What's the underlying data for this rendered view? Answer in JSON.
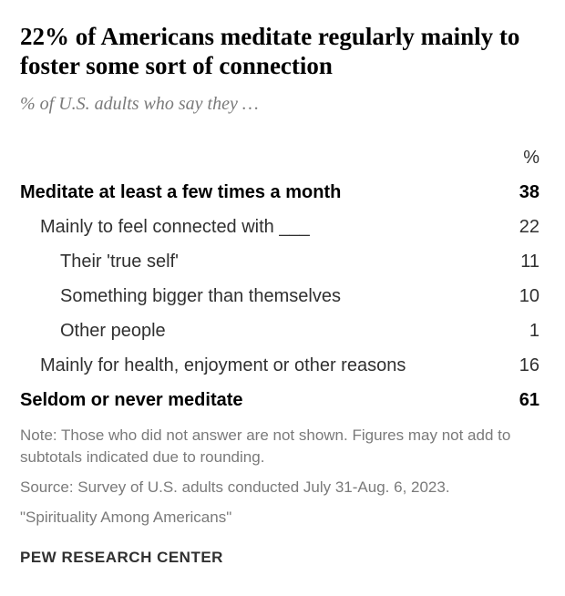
{
  "title": "22% of Americans meditate regularly mainly to foster some sort of connection",
  "subtitle": "% of U.S. adults who say they …",
  "column_header": "%",
  "rows": [
    {
      "label": "Meditate at least a few times a month",
      "value": "38",
      "bold": true,
      "indent": 0
    },
    {
      "label": "Mainly to feel connected with ___",
      "value": "22",
      "bold": false,
      "indent": 1
    },
    {
      "label": "Their 'true self'",
      "value": "11",
      "bold": false,
      "indent": 2
    },
    {
      "label": "Something bigger than themselves",
      "value": "10",
      "bold": false,
      "indent": 2
    },
    {
      "label": "Other people",
      "value": "1",
      "bold": false,
      "indent": 2
    },
    {
      "label": "Mainly for health, enjoyment or other reasons",
      "value": "16",
      "bold": false,
      "indent": 1
    },
    {
      "label": "Seldom or never meditate",
      "value": "61",
      "bold": true,
      "indent": 0
    }
  ],
  "note_line1": "Note: Those who did not answer are not shown. Figures may not add to subtotals indicated due to rounding.",
  "note_line2": "Source: Survey of U.S. adults conducted July 31-Aug. 6, 2023.",
  "note_line3": "\"Spirituality Among Americans\"",
  "attribution": "PEW RESEARCH CENTER",
  "colors": {
    "title": "#000000",
    "subtitle": "#7a7a7a",
    "body_text": "#303030",
    "note_text": "#7a7a7a",
    "background": "#ffffff"
  },
  "typography": {
    "title_fontsize": 27,
    "subtitle_fontsize": 20,
    "row_fontsize": 20,
    "note_fontsize": 17,
    "attribution_fontsize": 17
  }
}
